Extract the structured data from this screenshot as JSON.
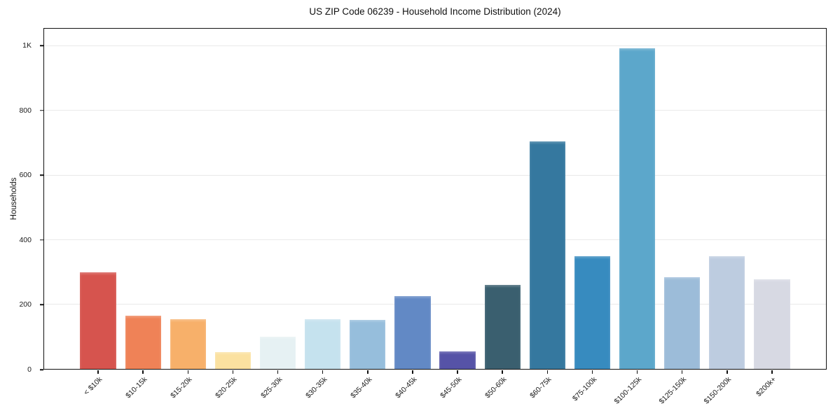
{
  "chart_data": {
    "type": "bar",
    "title": "US ZIP Code 06239 - Household Income Distribution (2024)",
    "xlabel": "",
    "ylabel": "Households",
    "ylim": [
      0,
      1055
    ],
    "grid": "horizontal-only",
    "grid_color": "#e9e9e9",
    "legend": "none",
    "categories": [
      "< $10k",
      "$10-15k",
      "$15-20k",
      "$20-25k",
      "$25-30k",
      "$30-35k",
      "$35-40k",
      "$40-45k",
      "$45-50k",
      "$50-60k",
      "$60-75k",
      "$75-100k",
      "$100-125k",
      "$125-150k",
      "$150-200k",
      "$200k+"
    ],
    "values": [
      300,
      165,
      155,
      52,
      100,
      155,
      152,
      225,
      55,
      260,
      705,
      350,
      995,
      285,
      350,
      278
    ],
    "bar_colors": [
      "#d6544e",
      "#ef8257",
      "#f7b06a",
      "#fbe1a0",
      "#e6f1f3",
      "#c5e2ee",
      "#96bedc",
      "#6289c5",
      "#5653a7",
      "#3a5f6f",
      "#35789f",
      "#378bbf",
      "#5ca7cb",
      "#9cbcd9",
      "#bdcce0",
      "#d7d9e3"
    ],
    "yticks": {
      "values": [
        0,
        200,
        400,
        600,
        800,
        1000
      ],
      "labels": [
        "0",
        "200",
        "400",
        "600",
        "800",
        "1K"
      ]
    },
    "xtick_rotation_deg": 45,
    "spine_color": "#111111"
  }
}
